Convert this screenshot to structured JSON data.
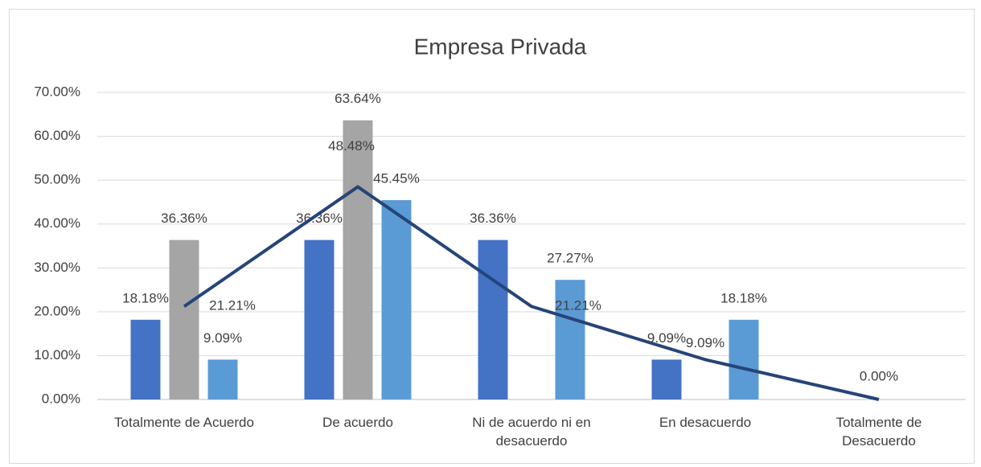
{
  "chart_data": {
    "type": "bar",
    "title": "Empresa Privada",
    "categories": [
      "Totalmente de Acuerdo",
      "De acuerdo",
      "Ni de acuerdo ni en desacuerdo",
      "En desacuerdo",
      "Totalmente de Desacuerdo"
    ],
    "series": [
      {
        "type": "bar",
        "color": "#4472c4",
        "values": [
          18.18,
          36.36,
          36.36,
          9.09,
          null
        ],
        "value_labels": [
          "18.18%",
          "36.36%",
          "36.36%",
          "9.09%",
          null
        ]
      },
      {
        "type": "bar",
        "color": "#a5a5a5",
        "values": [
          36.36,
          63.64,
          null,
          null,
          null
        ],
        "value_labels": [
          "36.36%",
          "63.64%",
          null,
          null,
          null
        ]
      },
      {
        "type": "bar",
        "color": "#5b9bd5",
        "values": [
          9.09,
          45.45,
          27.27,
          18.18,
          null
        ],
        "value_labels": [
          "9.09%",
          "45.45%",
          "27.27%",
          "18.18%",
          null
        ]
      },
      {
        "type": "line",
        "color": "#264478",
        "values": [
          21.21,
          48.48,
          21.21,
          9.09,
          0
        ],
        "value_labels": [
          "21.21%",
          "48.48%",
          "21.21%",
          "9.09%",
          "0.00%"
        ]
      }
    ],
    "ylim": [
      0,
      70
    ],
    "yticks": [
      {
        "value": 0,
        "label": "0.00%"
      },
      {
        "value": 10,
        "label": "10.00%"
      },
      {
        "value": 20,
        "label": "20.00%"
      },
      {
        "value": 30,
        "label": "30.00%"
      },
      {
        "value": 40,
        "label": "40.00%"
      },
      {
        "value": 50,
        "label": "50.00%"
      },
      {
        "value": 60,
        "label": "60.00%"
      },
      {
        "value": 70,
        "label": "70.00%"
      }
    ],
    "grid": true
  }
}
